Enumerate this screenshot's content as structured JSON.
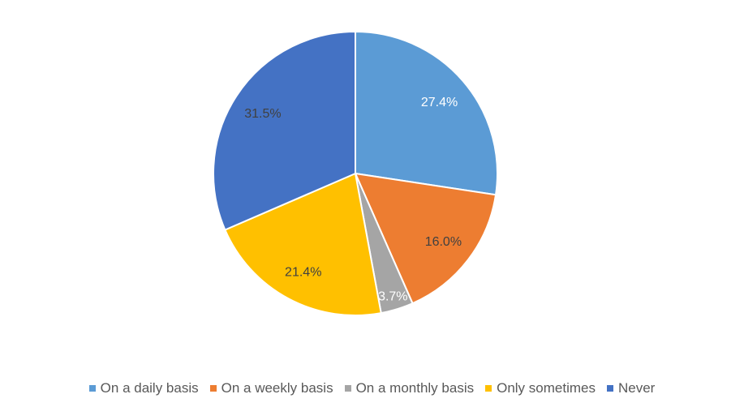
{
  "chart_data": {
    "type": "pie",
    "title": "",
    "categories": [
      "On a daily basis",
      "On a weekly basis",
      "On a monthly basis",
      "Only sometimes",
      "Never"
    ],
    "values": [
      27.4,
      16.0,
      3.7,
      21.4,
      31.5
    ],
    "labels": [
      "27.4%",
      "16.0%",
      "3.7%",
      "21.4%",
      "31.5%"
    ],
    "colors": [
      "#5B9BD5",
      "#ED7D31",
      "#A5A5A5",
      "#FFC000",
      "#4472C4"
    ],
    "label_colors": [
      "#FFFFFF",
      "#404040",
      "#FFFFFF",
      "#404040",
      "#404040"
    ],
    "start": "top",
    "direction": "clockwise",
    "legend_position": "bottom"
  }
}
